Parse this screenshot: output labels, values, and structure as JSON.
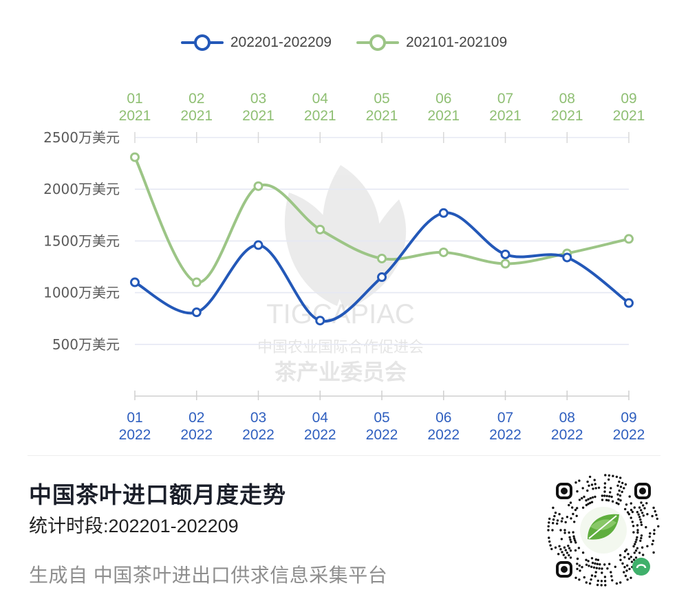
{
  "legend": {
    "series_a": "202201-202209",
    "series_b": "202101-202109"
  },
  "colors": {
    "series_a": "#2358b8",
    "series_b": "#9cc586",
    "axis_text": "#555555",
    "grid": "#e4e8f4"
  },
  "footer": {
    "title": "中国茶叶进口额月度走势",
    "subtitle": "统计时段:202201-202209",
    "source": "生成自 中国茶叶进出口供求信息采集平台"
  },
  "watermark": {
    "latin": "TIGCAPIAC",
    "line1": "中国农业国际合作促进会",
    "line2": "茶产业委员会"
  },
  "chart_data": {
    "type": "line",
    "ylim": [
      0,
      2500
    ],
    "yticks": [
      {
        "value": 500,
        "label": "500万美元"
      },
      {
        "value": 1000,
        "label": "1000万美元"
      },
      {
        "value": 1500,
        "label": "1500万美元"
      },
      {
        "value": 2000,
        "label": "2000万美元"
      },
      {
        "value": 2500,
        "label": "2500万美元"
      }
    ],
    "x_bottom": [
      {
        "m": "01",
        "y": "2022"
      },
      {
        "m": "02",
        "y": "2022"
      },
      {
        "m": "03",
        "y": "2022"
      },
      {
        "m": "04",
        "y": "2022"
      },
      {
        "m": "05",
        "y": "2022"
      },
      {
        "m": "06",
        "y": "2022"
      },
      {
        "m": "07",
        "y": "2022"
      },
      {
        "m": "08",
        "y": "2022"
      },
      {
        "m": "09",
        "y": "2022"
      }
    ],
    "x_top": [
      {
        "m": "01",
        "y": "2021"
      },
      {
        "m": "02",
        "y": "2021"
      },
      {
        "m": "03",
        "y": "2021"
      },
      {
        "m": "04",
        "y": "2021"
      },
      {
        "m": "05",
        "y": "2021"
      },
      {
        "m": "06",
        "y": "2021"
      },
      {
        "m": "07",
        "y": "2021"
      },
      {
        "m": "08",
        "y": "2021"
      },
      {
        "m": "09",
        "y": "2021"
      }
    ],
    "series": [
      {
        "name": "202201-202209",
        "color": "#2358b8",
        "values": [
          1100,
          810,
          1460,
          730,
          1150,
          1770,
          1370,
          1340,
          900
        ]
      },
      {
        "name": "202101-202109",
        "color": "#9cc586",
        "values": [
          2310,
          1100,
          2030,
          1610,
          1330,
          1390,
          1280,
          1380,
          1520
        ]
      }
    ]
  }
}
